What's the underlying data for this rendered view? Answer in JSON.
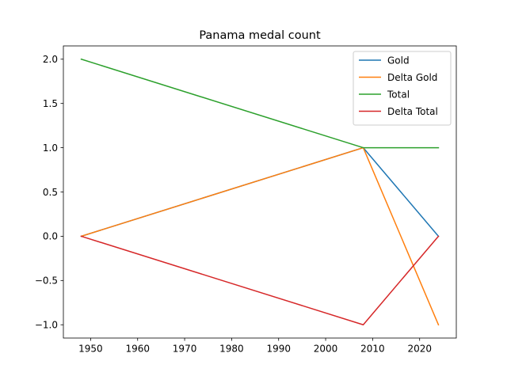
{
  "chart_data": {
    "type": "line",
    "title": "Panama medal count",
    "xlabel": "",
    "ylabel": "",
    "x": [
      1948,
      2008,
      2024
    ],
    "xlim": [
      1944.2,
      2027.8
    ],
    "ylim": [
      -1.15,
      2.15
    ],
    "xticks": [
      1950,
      1960,
      1970,
      1980,
      1990,
      2000,
      2010,
      2020
    ],
    "yticks": [
      -1.0,
      -0.5,
      0.0,
      0.5,
      1.0,
      1.5,
      2.0
    ],
    "xtick_labels": [
      "1950",
      "1960",
      "1970",
      "1980",
      "1990",
      "2000",
      "2010",
      "2020"
    ],
    "ytick_labels": [
      "−1.0",
      "−0.5",
      "0.0",
      "0.5",
      "1.0",
      "1.5",
      "2.0"
    ],
    "grid": false,
    "legend_position": "top-right",
    "series": [
      {
        "name": "Gold",
        "color": "#1f77b4",
        "values": [
          0,
          1,
          0
        ]
      },
      {
        "name": "Delta Gold",
        "color": "#ff7f0e",
        "values": [
          0,
          1,
          -1
        ]
      },
      {
        "name": "Total",
        "color": "#2ca02c",
        "values": [
          2,
          1,
          1
        ]
      },
      {
        "name": "Delta Total",
        "color": "#d62728",
        "values": [
          0,
          -1,
          0
        ]
      }
    ]
  }
}
